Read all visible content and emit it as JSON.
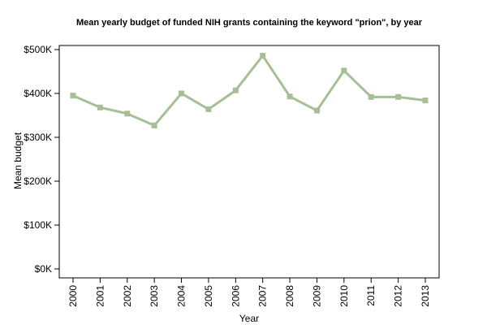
{
  "chart_data": {
    "type": "line",
    "title": "Mean yearly budget of funded NIH grants containing the keyword \"prion\", by year",
    "xlabel": "Year",
    "ylabel": "Mean budget",
    "categories": [
      "2000",
      "2001",
      "2002",
      "2003",
      "2004",
      "2005",
      "2006",
      "2007",
      "2008",
      "2009",
      "2010",
      "2011",
      "2012",
      "2013"
    ],
    "series": [
      {
        "values": [
          395000,
          368000,
          354000,
          327000,
          400000,
          364000,
          407000,
          486000,
          393000,
          361000,
          452000,
          392000,
          392000,
          384000
        ]
      }
    ],
    "ylim": [
      0,
      500000
    ],
    "yticks": [
      0,
      100000,
      200000,
      300000,
      400000,
      500000
    ],
    "ytick_labels": [
      "$0K",
      "$100K",
      "$200K",
      "$300K",
      "$400K",
      "$500K"
    ],
    "grid": false,
    "legend": "none",
    "line_color": "#a6bf97"
  }
}
